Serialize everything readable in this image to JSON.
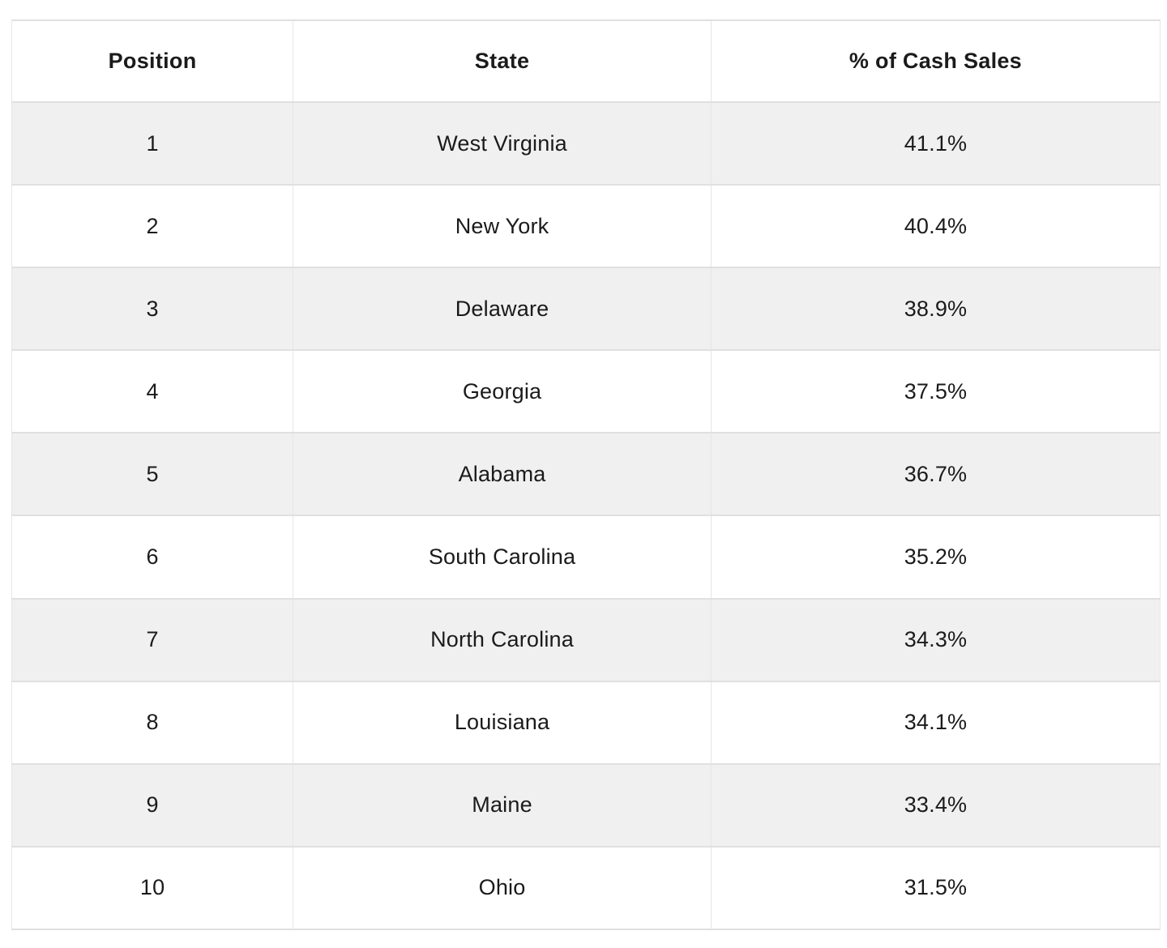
{
  "chart_data": {
    "type": "table",
    "title": "",
    "columns": [
      "Position",
      "State",
      "% of Cash Sales"
    ],
    "rows": [
      {
        "position": 1,
        "state": "West Virginia",
        "value_pct": 41.1,
        "display": "41.1%"
      },
      {
        "position": 2,
        "state": "New York",
        "value_pct": 40.4,
        "display": "40.4%"
      },
      {
        "position": 3,
        "state": "Delaware",
        "value_pct": 38.9,
        "display": "38.9%"
      },
      {
        "position": 4,
        "state": "Georgia",
        "value_pct": 37.5,
        "display": "37.5%"
      },
      {
        "position": 5,
        "state": "Alabama",
        "value_pct": 36.7,
        "display": "36.7%"
      },
      {
        "position": 6,
        "state": "South Carolina",
        "value_pct": 35.2,
        "display": "35.2%"
      },
      {
        "position": 7,
        "state": "North Carolina",
        "value_pct": 34.3,
        "display": "34.3%"
      },
      {
        "position": 8,
        "state": "Louisiana",
        "value_pct": 34.1,
        "display": "34.1%"
      },
      {
        "position": 9,
        "state": "Maine",
        "value_pct": 33.4,
        "display": "33.4%"
      },
      {
        "position": 10,
        "state": "Ohio",
        "value_pct": 31.5,
        "display": "31.5%"
      }
    ],
    "layout": {
      "grid": true,
      "zebra_striping": true,
      "first_data_row_shaded": true
    }
  },
  "colors": {
    "row_alt_bg": "#f0f0f0",
    "border_h": "#e0e0e0",
    "border_v": "#e6e6e6",
    "text": "#1b1b1b",
    "header_bg": "#ffffff"
  }
}
